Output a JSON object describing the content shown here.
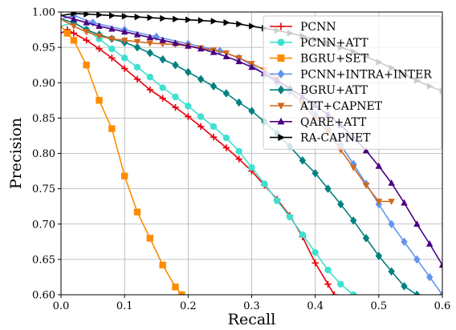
{
  "chart_data": {
    "type": "line",
    "title": "",
    "xlabel": "Recall",
    "ylabel": "Precision",
    "xlim": [
      0.0,
      0.6
    ],
    "ylim": [
      0.6,
      1.0
    ],
    "xticks": [
      "0.0",
      "0.1",
      "0.2",
      "0.3",
      "0.4",
      "0.5",
      "0.6"
    ],
    "yticks": [
      "0.60",
      "0.65",
      "0.70",
      "0.75",
      "0.80",
      "0.85",
      "0.90",
      "0.95",
      "1.00"
    ],
    "grid": true,
    "legend_position": "top-right",
    "series": [
      {
        "name": "PCNN",
        "color": "#e8000b",
        "marker": "plus",
        "x": [
          0.0,
          0.01,
          0.02,
          0.04,
          0.06,
          0.08,
          0.1,
          0.12,
          0.14,
          0.16,
          0.18,
          0.2,
          0.22,
          0.24,
          0.26,
          0.28,
          0.3,
          0.32,
          0.34,
          0.36,
          0.38,
          0.4,
          0.42,
          0.43
        ],
        "y": [
          0.97,
          0.975,
          0.97,
          0.96,
          0.948,
          0.935,
          0.92,
          0.905,
          0.89,
          0.878,
          0.865,
          0.852,
          0.838,
          0.823,
          0.808,
          0.792,
          0.775,
          0.755,
          0.735,
          0.712,
          0.682,
          0.645,
          0.615,
          0.6
        ]
      },
      {
        "name": "PCNN+ATT",
        "color": "#40e0d0",
        "marker": "circle",
        "x": [
          0.0,
          0.02,
          0.04,
          0.06,
          0.08,
          0.1,
          0.12,
          0.14,
          0.16,
          0.18,
          0.2,
          0.22,
          0.24,
          0.26,
          0.28,
          0.3,
          0.32,
          0.34,
          0.36,
          0.38,
          0.4,
          0.42,
          0.44,
          0.46
        ],
        "y": [
          0.98,
          0.985,
          0.975,
          0.962,
          0.948,
          0.935,
          0.922,
          0.908,
          0.893,
          0.88,
          0.867,
          0.852,
          0.838,
          0.822,
          0.803,
          0.78,
          0.757,
          0.733,
          0.71,
          0.685,
          0.66,
          0.635,
          0.615,
          0.6
        ]
      },
      {
        "name": "BGRU+SET",
        "color": "#ff8c00",
        "marker": "square",
        "x": [
          0.0,
          0.01,
          0.02,
          0.04,
          0.06,
          0.08,
          0.1,
          0.12,
          0.14,
          0.16,
          0.18,
          0.19
        ],
        "y": [
          0.98,
          0.97,
          0.96,
          0.925,
          0.875,
          0.835,
          0.768,
          0.717,
          0.68,
          0.642,
          0.611,
          0.6
        ]
      },
      {
        "name": "PCNN+INTRA+INTER",
        "color": "#6495ed",
        "marker": "diamond",
        "x": [
          0.0,
          0.02,
          0.05,
          0.1,
          0.15,
          0.2,
          0.25,
          0.28,
          0.3,
          0.32,
          0.34,
          0.36,
          0.38,
          0.4,
          0.42,
          0.44,
          0.46,
          0.48,
          0.5,
          0.52,
          0.54,
          0.56,
          0.58,
          0.6
        ],
        "y": [
          0.99,
          0.995,
          0.985,
          0.975,
          0.965,
          0.955,
          0.945,
          0.935,
          0.925,
          0.912,
          0.9,
          0.887,
          0.872,
          0.855,
          0.835,
          0.812,
          0.785,
          0.757,
          0.728,
          0.7,
          0.675,
          0.65,
          0.625,
          0.6
        ]
      },
      {
        "name": "BGRU+ATT",
        "color": "#008080",
        "marker": "diamond",
        "x": [
          0.0,
          0.02,
          0.04,
          0.06,
          0.08,
          0.1,
          0.12,
          0.14,
          0.16,
          0.18,
          0.2,
          0.22,
          0.24,
          0.26,
          0.28,
          0.3,
          0.32,
          0.34,
          0.36,
          0.38,
          0.4,
          0.42,
          0.44,
          0.46,
          0.48,
          0.5,
          0.52,
          0.54,
          0.56
        ],
        "y": [
          0.99,
          0.985,
          0.975,
          0.968,
          0.962,
          0.957,
          0.95,
          0.942,
          0.933,
          0.925,
          0.915,
          0.905,
          0.895,
          0.885,
          0.872,
          0.86,
          0.845,
          0.828,
          0.81,
          0.79,
          0.772,
          0.75,
          0.728,
          0.705,
          0.68,
          0.655,
          0.633,
          0.612,
          0.6
        ]
      },
      {
        "name": "ATT+CAPNET",
        "color": "#d2691e",
        "marker": "triangle-down",
        "x": [
          0.0,
          0.02,
          0.04,
          0.06,
          0.08,
          0.1,
          0.12,
          0.14,
          0.16,
          0.18,
          0.2,
          0.22,
          0.24,
          0.26,
          0.28,
          0.3,
          0.32,
          0.34,
          0.36,
          0.38,
          0.4,
          0.42,
          0.44,
          0.46,
          0.48,
          0.5,
          0.52
        ],
        "y": [
          0.99,
          0.98,
          0.972,
          0.966,
          0.962,
          0.96,
          0.958,
          0.956,
          0.955,
          0.954,
          0.952,
          0.949,
          0.946,
          0.942,
          0.935,
          0.927,
          0.918,
          0.905,
          0.89,
          0.87,
          0.85,
          0.83,
          0.805,
          0.78,
          0.755,
          0.732,
          0.732
        ]
      },
      {
        "name": "QARE+ATT",
        "color": "#4b0082",
        "marker": "triangle-up",
        "x": [
          0.0,
          0.02,
          0.04,
          0.06,
          0.08,
          0.1,
          0.12,
          0.14,
          0.16,
          0.18,
          0.2,
          0.22,
          0.24,
          0.26,
          0.28,
          0.3,
          0.32,
          0.34,
          0.36,
          0.38,
          0.4,
          0.42,
          0.44,
          0.46,
          0.48,
          0.5,
          0.52,
          0.54,
          0.56,
          0.58,
          0.6
        ],
        "y": [
          0.995,
          0.99,
          0.985,
          0.98,
          0.976,
          0.972,
          0.968,
          0.964,
          0.96,
          0.956,
          0.952,
          0.948,
          0.943,
          0.937,
          0.93,
          0.922,
          0.913,
          0.903,
          0.892,
          0.88,
          0.868,
          0.855,
          0.84,
          0.823,
          0.804,
          0.782,
          0.758,
          0.73,
          0.7,
          0.672,
          0.642
        ]
      },
      {
        "name": "RA-CAPNET",
        "color": "#000000",
        "marker": "triangle-right",
        "x": [
          0.0,
          0.02,
          0.04,
          0.06,
          0.08,
          0.1,
          0.12,
          0.14,
          0.16,
          0.18,
          0.2,
          0.22,
          0.24,
          0.26,
          0.28,
          0.3,
          0.32,
          0.34,
          0.36,
          0.38,
          0.4,
          0.42,
          0.44,
          0.46,
          0.48,
          0.5,
          0.52,
          0.54,
          0.56,
          0.58,
          0.6
        ],
        "y": [
          0.995,
          0.998,
          0.997,
          0.996,
          0.995,
          0.994,
          0.993,
          0.992,
          0.991,
          0.99,
          0.989,
          0.988,
          0.987,
          0.985,
          0.983,
          0.98,
          0.977,
          0.974,
          0.97,
          0.966,
          0.961,
          0.956,
          0.95,
          0.944,
          0.937,
          0.929,
          0.921,
          0.912,
          0.903,
          0.895,
          0.888
        ]
      }
    ]
  }
}
